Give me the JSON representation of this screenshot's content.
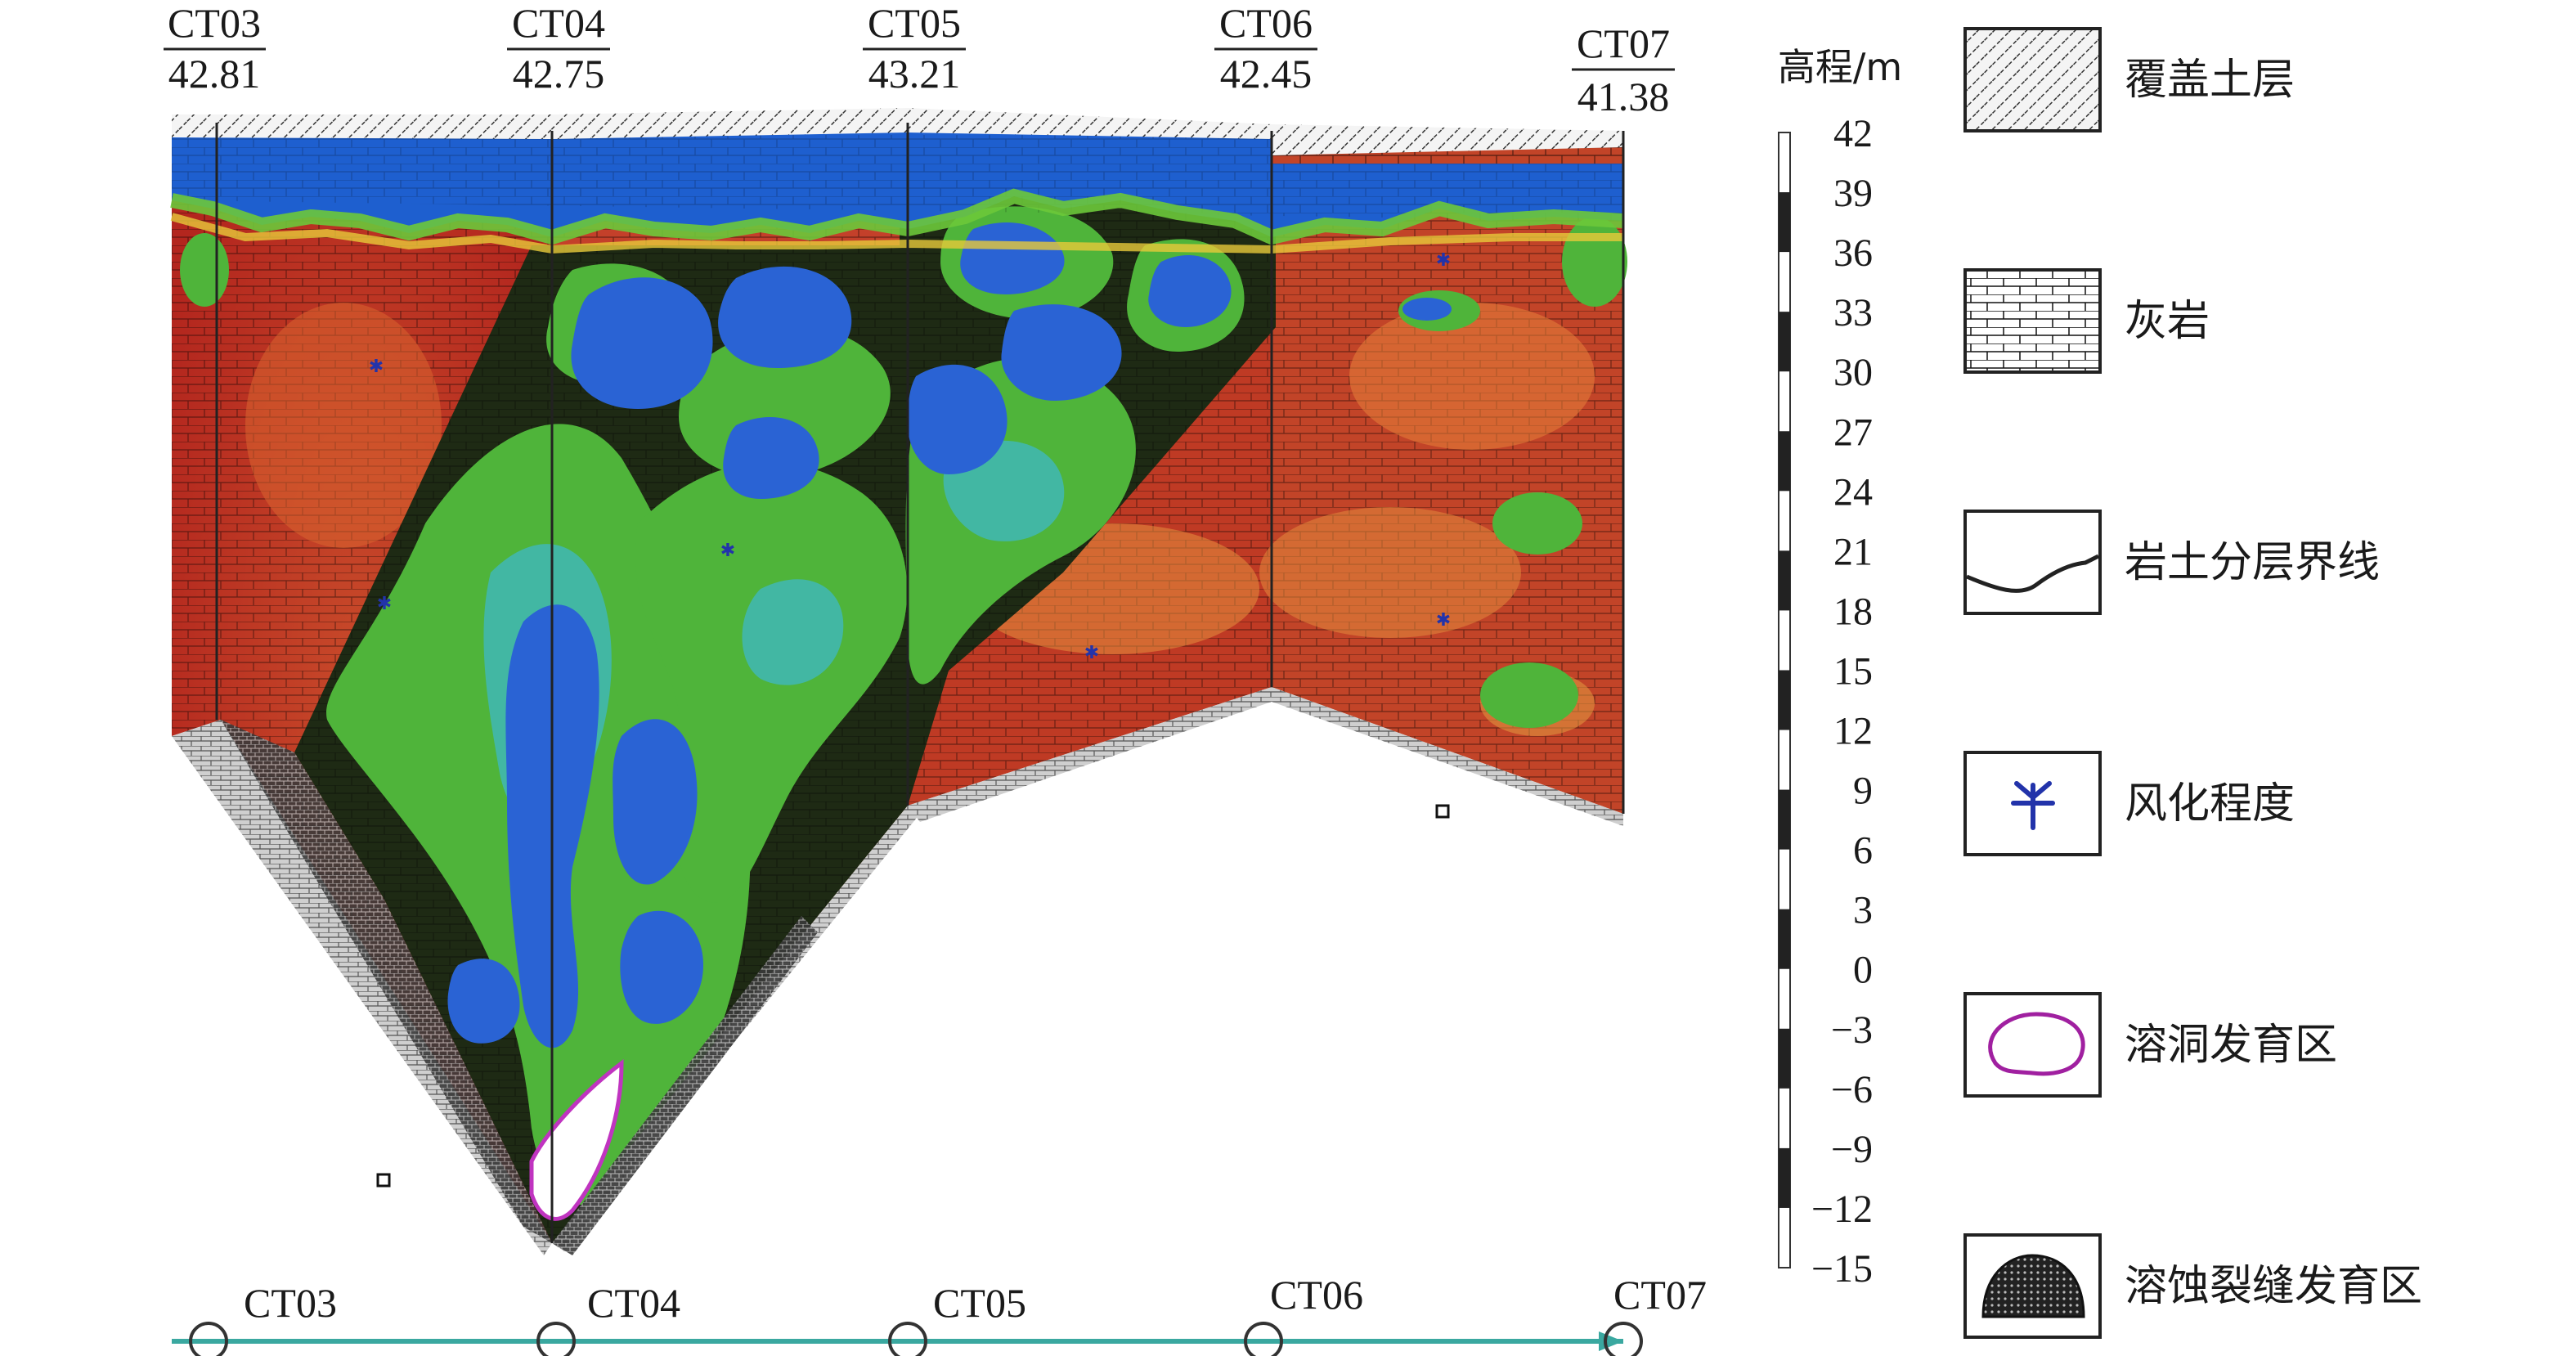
{
  "boreholes": [
    {
      "name": "CT03",
      "elevation": "42.81"
    },
    {
      "name": "CT04",
      "elevation": "42.75"
    },
    {
      "name": "CT05",
      "elevation": "43.21"
    },
    {
      "name": "CT06",
      "elevation": "42.45"
    },
    {
      "name": "CT07",
      "elevation": "41.38"
    }
  ],
  "plan_line": {
    "labels": [
      "CT03",
      "CT04",
      "CT05",
      "CT06",
      "CT07"
    ],
    "color": "#3aa8a0"
  },
  "elevation_scale": {
    "title": "高程/m",
    "ticks": [
      "42",
      "39",
      "36",
      "33",
      "30",
      "27",
      "24",
      "21",
      "18",
      "15",
      "12",
      "9",
      "6",
      "3",
      "0",
      "−3",
      "−6",
      "−9",
      "−12",
      "−15"
    ]
  },
  "legend": [
    {
      "key": "cover",
      "label": "覆盖土层",
      "icon": "hatch-diagonal"
    },
    {
      "key": "limestone",
      "label": "灰岩",
      "icon": "brick-pattern"
    },
    {
      "key": "boundary",
      "label": "岩土分层界线",
      "icon": "boundary-line"
    },
    {
      "key": "weathering",
      "label": "风化程度",
      "icon": "weathering-symbol"
    },
    {
      "key": "cave",
      "label": "溶洞发育区",
      "icon": "cave-outline",
      "color": "#a020a0"
    },
    {
      "key": "fissure",
      "label": "溶蚀裂缝发育区",
      "icon": "fissure-dome"
    }
  ],
  "colors": {
    "high_resistivity": "#c0392b",
    "mid_resistivity": "#3fa63a",
    "low_resistivity": "#2f6fd6",
    "cover_layer": "#1e5fcf"
  }
}
